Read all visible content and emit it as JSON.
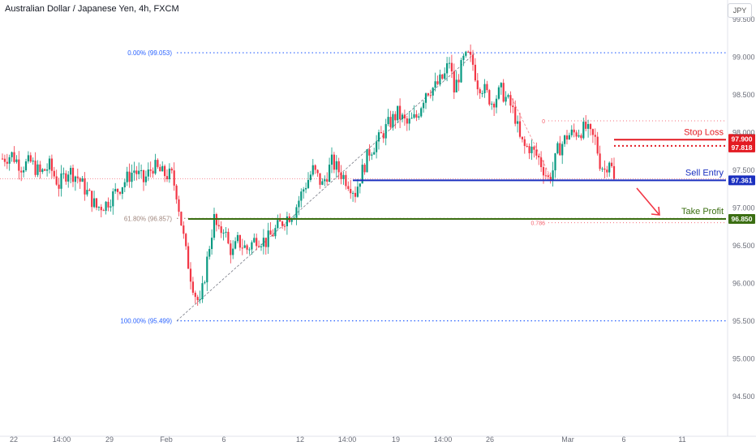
{
  "header": {
    "title": "Australian Dollar / Japanese Yen, 4h, FXCM",
    "currency_button": "JPY"
  },
  "colors": {
    "up": "#089981",
    "down": "#f23645",
    "stop_loss": "#e31b23",
    "sell_entry": "#1a2fbf",
    "take_profit": "#3b6e12",
    "fib_blue": "#2962ff",
    "fib_gold": "#a1887f",
    "fib_red": "#f23645"
  },
  "chart_data": {
    "type": "candlestick",
    "symbol": "Australian Dollar / Japanese Yen",
    "timeframe": "4h",
    "source": "FXCM",
    "ylim": [
      94.25,
      99.75
    ],
    "y_ticks": [
      "99.500",
      "99.000",
      "98.500",
      "98.000",
      "97.500",
      "97.000",
      "96.500",
      "96.000",
      "95.500",
      "95.000",
      "94.500"
    ],
    "x_ticks": [
      "22",
      "14:00",
      "29",
      "Feb",
      "6",
      "12",
      "14:00",
      "19",
      "14:00",
      "26",
      "Mar",
      "6",
      "11"
    ],
    "levels": [
      {
        "label": "Stop Loss",
        "value": 97.9,
        "price_tag": "97.900"
      },
      {
        "label": "",
        "value": 97.818,
        "price_tag": "97.818"
      },
      {
        "label": "Sell Entry",
        "value": 97.361,
        "price_tag": "97.361"
      },
      {
        "label": "Take Profit",
        "value": 96.85,
        "price_tag": "96.850"
      }
    ],
    "fib_1": [
      {
        "label": "0.00% (99.053)",
        "value": 99.053
      },
      {
        "label": "61.80% (96.857)",
        "value": 96.857
      },
      {
        "label": "100.00% (95.499)",
        "value": 95.499
      }
    ],
    "fib_2": [
      {
        "label": "0",
        "value": 98.15
      },
      {
        "label": "0.786",
        "value": 96.8
      }
    ],
    "last_price": 97.38,
    "close_path": [
      [
        0,
        97.65
      ],
      [
        4,
        97.7
      ],
      [
        8,
        97.55
      ],
      [
        12,
        97.6
      ],
      [
        16,
        97.45
      ],
      [
        20,
        97.55
      ],
      [
        24,
        97.3
      ],
      [
        28,
        97.5
      ],
      [
        32,
        97.4
      ],
      [
        36,
        97.2
      ],
      [
        40,
        97.0
      ],
      [
        44,
        97.05
      ],
      [
        48,
        97.2
      ],
      [
        52,
        97.35
      ],
      [
        56,
        97.5
      ],
      [
        60,
        97.35
      ],
      [
        64,
        97.55
      ],
      [
        68,
        97.45
      ],
      [
        72,
        97.42
      ],
      [
        74,
        97.2
      ],
      [
        76,
        96.8
      ],
      [
        78,
        96.4
      ],
      [
        80,
        96.1
      ],
      [
        82,
        95.85
      ],
      [
        84,
        95.7
      ],
      [
        86,
        96.1
      ],
      [
        88,
        96.5
      ],
      [
        90,
        96.85
      ],
      [
        92,
        96.65
      ],
      [
        94,
        96.75
      ],
      [
        96,
        96.5
      ],
      [
        98,
        96.4
      ],
      [
        100,
        96.55
      ],
      [
        104,
        96.45
      ],
      [
        108,
        96.6
      ],
      [
        112,
        96.55
      ],
      [
        116,
        96.7
      ],
      [
        120,
        96.85
      ],
      [
        124,
        96.95
      ],
      [
        128,
        97.25
      ],
      [
        132,
        97.5
      ],
      [
        136,
        97.3
      ],
      [
        140,
        97.6
      ],
      [
        144,
        97.45
      ],
      [
        148,
        97.3
      ],
      [
        150,
        97.2
      ],
      [
        152,
        97.4
      ],
      [
        156,
        97.75
      ],
      [
        160,
        97.9
      ],
      [
        164,
        98.1
      ],
      [
        168,
        98.25
      ],
      [
        172,
        98.1
      ],
      [
        176,
        98.2
      ],
      [
        180,
        98.55
      ],
      [
        184,
        98.6
      ],
      [
        188,
        98.75
      ],
      [
        190,
        98.95
      ],
      [
        192,
        98.55
      ],
      [
        194,
        98.75
      ],
      [
        196,
        98.95
      ],
      [
        198,
        99.0
      ],
      [
        200,
        98.9
      ],
      [
        202,
        98.65
      ],
      [
        204,
        98.6
      ],
      [
        208,
        98.4
      ],
      [
        212,
        98.55
      ],
      [
        216,
        98.35
      ],
      [
        218,
        98.2
      ],
      [
        220,
        97.9
      ],
      [
        222,
        97.8
      ],
      [
        224,
        97.8
      ],
      [
        228,
        97.65
      ],
      [
        232,
        97.38
      ],
      [
        234,
        97.5
      ],
      [
        236,
        97.75
      ],
      [
        238,
        97.85
      ],
      [
        240,
        97.95
      ],
      [
        244,
        98.0
      ],
      [
        248,
        98.05
      ],
      [
        250,
        97.95
      ],
      [
        252,
        97.9
      ],
      [
        254,
        97.6
      ],
      [
        256,
        97.5
      ],
      [
        258,
        97.65
      ],
      [
        260,
        97.38
      ]
    ]
  }
}
